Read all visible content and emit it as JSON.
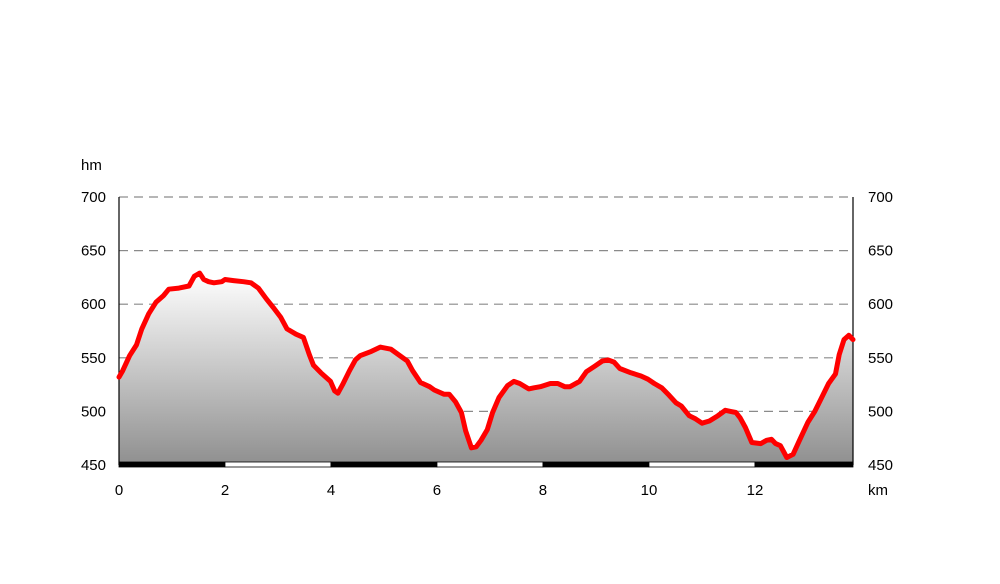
{
  "chart_data": {
    "type": "area",
    "ylabel": "hm",
    "xlabel": "km",
    "xlim": [
      0,
      13.85
    ],
    "ylim": [
      450,
      700
    ],
    "x_ticks": [
      "0",
      "2",
      "4",
      "6",
      "8",
      "10",
      "12"
    ],
    "x_tick_values": [
      0,
      2,
      4,
      6,
      8,
      10,
      12
    ],
    "y_ticks": [
      "450",
      "500",
      "550",
      "600",
      "650",
      "700"
    ],
    "y_tick_values": [
      450,
      500,
      550,
      600,
      650,
      700
    ],
    "grid": "dashed horizontal",
    "line_color": "#ff0000",
    "fill_top_color": "#ffffff",
    "fill_bottom_color": "#8f8f8f",
    "series": [
      {
        "x": [
          0,
          0.07,
          0.2,
          0.33,
          0.43,
          0.56,
          0.7,
          0.84,
          0.94,
          1.13,
          1.32,
          1.42,
          1.52,
          1.6,
          1.69,
          1.79,
          1.94,
          2.0,
          2.16,
          2.35,
          2.49,
          2.63,
          2.78,
          2.91,
          3.05,
          3.17,
          3.34,
          3.48,
          3.59,
          3.67,
          3.81,
          3.99,
          4.07,
          4.13,
          4.22,
          4.35,
          4.46,
          4.55,
          4.76,
          4.93,
          5.13,
          5.3,
          5.44,
          5.54,
          5.69,
          5.86,
          5.95,
          6.13,
          6.23,
          6.35,
          6.46,
          6.54,
          6.65,
          6.74,
          6.83,
          6.95,
          7.05,
          7.17,
          7.33,
          7.45,
          7.56,
          7.73,
          7.83,
          7.95,
          8.14,
          8.28,
          8.41,
          8.51,
          8.69,
          8.82,
          8.97,
          9.12,
          9.23,
          9.34,
          9.45,
          9.66,
          9.85,
          9.98,
          10.1,
          10.24,
          10.38,
          10.51,
          10.61,
          10.76,
          10.88,
          11.0,
          11.14,
          11.3,
          11.44,
          11.54,
          11.64,
          11.72,
          11.82,
          11.94,
          12.11,
          12.22,
          12.31,
          12.39,
          12.48,
          12.6,
          12.72,
          12.84,
          13.0,
          13.13,
          13.25,
          13.39,
          13.52,
          13.59,
          13.68,
          13.77,
          13.85
        ],
        "y": [
          532,
          538,
          552,
          562,
          577,
          591,
          602,
          608,
          614,
          615,
          617,
          626,
          629,
          623,
          621,
          620,
          621,
          623,
          622,
          621,
          620,
          615,
          605,
          597,
          588,
          577,
          572,
          569,
          553,
          543,
          536,
          528,
          519,
          517,
          525,
          538,
          548,
          552,
          556,
          560,
          558,
          552,
          547,
          538,
          527,
          523,
          520,
          516,
          516,
          509,
          499,
          482,
          466,
          467,
          473,
          483,
          499,
          513,
          524,
          528,
          526,
          521,
          522,
          523,
          526,
          526,
          523,
          523,
          528,
          537,
          542,
          547,
          548,
          546,
          540,
          536,
          533,
          530,
          526,
          522,
          515,
          508,
          505,
          496,
          493,
          489,
          491,
          496,
          501,
          500,
          499,
          494,
          485,
          471,
          470,
          473,
          474,
          470,
          468,
          457,
          460,
          473,
          490,
          500,
          512,
          526,
          535,
          553,
          567,
          571,
          567
        ]
      }
    ]
  }
}
